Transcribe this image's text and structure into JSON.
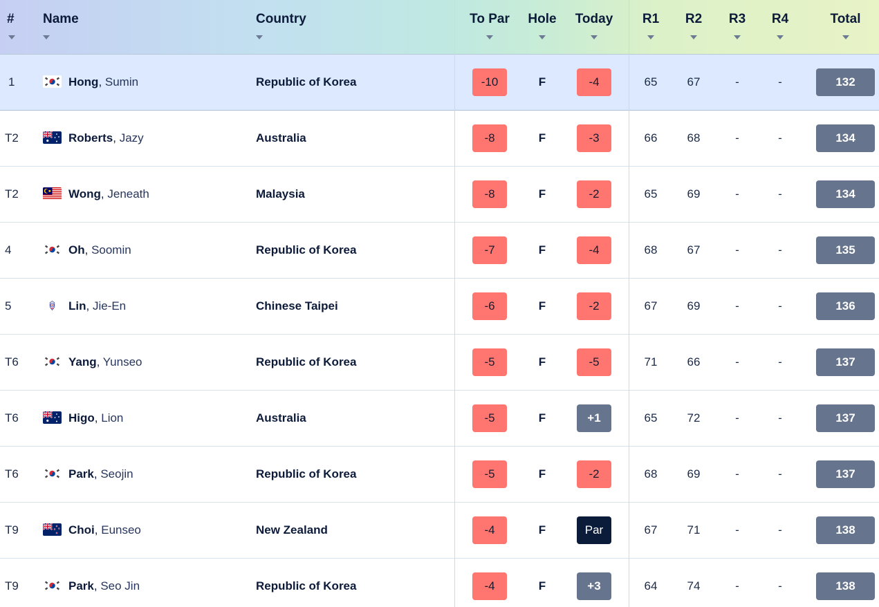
{
  "columns": {
    "pos": "#",
    "name": "Name",
    "country": "Country",
    "to_par": "To Par",
    "hole": "Hole",
    "today": "Today",
    "r1": "R1",
    "r2": "R2",
    "r3": "R3",
    "r4": "R4",
    "total": "Total"
  },
  "colors": {
    "under_par": "#ff7670",
    "over_par": "#66758d",
    "even_par": "#0a1c3a",
    "leader_row": "#dce9fe",
    "total_badge": "#66758d"
  },
  "rows": [
    {
      "pos": "1",
      "last": "Hong",
      "first": "Sumin",
      "flag": "korea-flag-icon",
      "country": "Republic of Korea",
      "to_par": "-10",
      "hole": "F",
      "today": "-4",
      "today_style": "red",
      "r1": "65",
      "r2": "67",
      "r3": "-",
      "r4": "-",
      "total": "132"
    },
    {
      "pos": "T2",
      "last": "Roberts",
      "first": "Jazy",
      "flag": "australia-flag-icon",
      "country": "Australia",
      "to_par": "-8",
      "hole": "F",
      "today": "-3",
      "today_style": "red",
      "r1": "66",
      "r2": "68",
      "r3": "-",
      "r4": "-",
      "total": "134"
    },
    {
      "pos": "T2",
      "last": "Wong",
      "first": "Jeneath",
      "flag": "malaysia-flag-icon",
      "country": "Malaysia",
      "to_par": "-8",
      "hole": "F",
      "today": "-2",
      "today_style": "red",
      "r1": "65",
      "r2": "69",
      "r3": "-",
      "r4": "-",
      "total": "134"
    },
    {
      "pos": "4",
      "last": "Oh",
      "first": "Soomin",
      "flag": "korea-flag-icon",
      "country": "Republic of Korea",
      "to_par": "-7",
      "hole": "F",
      "today": "-4",
      "today_style": "red",
      "r1": "68",
      "r2": "67",
      "r3": "-",
      "r4": "-",
      "total": "135"
    },
    {
      "pos": "5",
      "last": "Lin",
      "first": "Jie-En",
      "flag": "chinese-taipei-flag-icon",
      "country": "Chinese Taipei",
      "to_par": "-6",
      "hole": "F",
      "today": "-2",
      "today_style": "red",
      "r1": "67",
      "r2": "69",
      "r3": "-",
      "r4": "-",
      "total": "136"
    },
    {
      "pos": "T6",
      "last": "Yang",
      "first": "Yunseo",
      "flag": "korea-flag-icon",
      "country": "Republic of Korea",
      "to_par": "-5",
      "hole": "F",
      "today": "-5",
      "today_style": "red",
      "r1": "71",
      "r2": "66",
      "r3": "-",
      "r4": "-",
      "total": "137"
    },
    {
      "pos": "T6",
      "last": "Higo",
      "first": "Lion",
      "flag": "australia-flag-icon",
      "country": "Australia",
      "to_par": "-5",
      "hole": "F",
      "today": "+1",
      "today_style": "gray",
      "r1": "65",
      "r2": "72",
      "r3": "-",
      "r4": "-",
      "total": "137"
    },
    {
      "pos": "T6",
      "last": "Park",
      "first": "Seojin",
      "flag": "korea-flag-icon",
      "country": "Republic of Korea",
      "to_par": "-5",
      "hole": "F",
      "today": "-2",
      "today_style": "red",
      "r1": "68",
      "r2": "69",
      "r3": "-",
      "r4": "-",
      "total": "137"
    },
    {
      "pos": "T9",
      "last": "Choi",
      "first": "Eunseo",
      "flag": "new-zealand-flag-icon",
      "country": "New Zealand",
      "to_par": "-4",
      "hole": "F",
      "today": "Par",
      "today_style": "navy",
      "r1": "67",
      "r2": "71",
      "r3": "-",
      "r4": "-",
      "total": "138"
    },
    {
      "pos": "T9",
      "last": "Park",
      "first": "Seo Jin",
      "flag": "korea-flag-icon",
      "country": "Republic of Korea",
      "to_par": "-4",
      "hole": "F",
      "today": "+3",
      "today_style": "gray",
      "r1": "64",
      "r2": "74",
      "r3": "-",
      "r4": "-",
      "total": "138"
    }
  ]
}
